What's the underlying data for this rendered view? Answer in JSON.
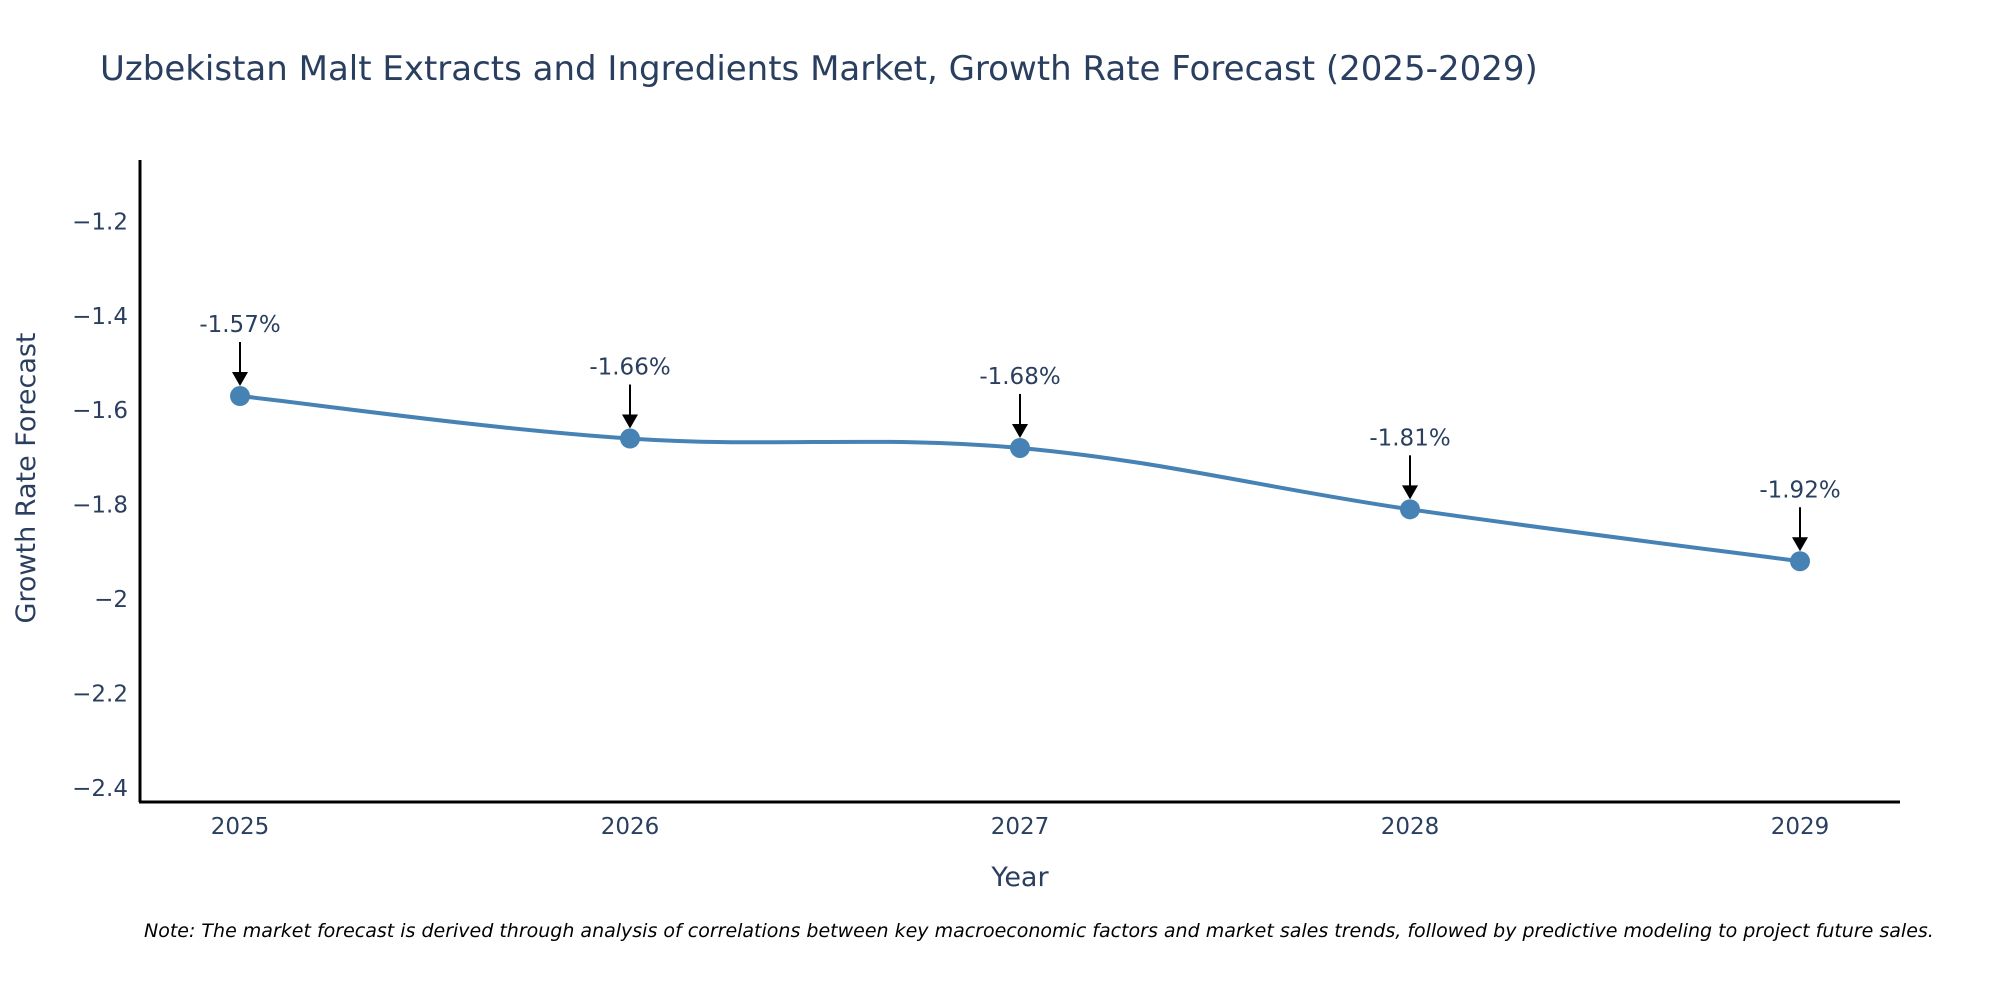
{
  "chart_data": {
    "type": "line",
    "title": "Uzbekistan Malt Extracts and Ingredients Market, Growth Rate Forecast (2025-2029)",
    "xlabel": "Year",
    "ylabel": "Growth Rate Forecast",
    "categories": [
      "2025",
      "2026",
      "2027",
      "2028",
      "2029"
    ],
    "values": [
      -1.57,
      -1.66,
      -1.68,
      -1.81,
      -1.92
    ],
    "data_labels": [
      "-1.57%",
      "-1.66%",
      "-1.68%",
      "-1.81%",
      "-1.92%"
    ],
    "ylim": [
      -2.43,
      -1.07
    ],
    "yticks": [
      -1.2,
      -1.4,
      -1.6,
      -1.8,
      -2,
      -2.2,
      -2.4
    ],
    "ytick_labels": [
      "−1.2",
      "−1.4",
      "−1.6",
      "−1.8",
      "−2",
      "−2.2",
      "−2.4"
    ],
    "line_color": "#4682b4",
    "marker_color": "#4682b4",
    "axis_color": "#000000",
    "grid": false
  },
  "note": "Note: The market forecast is derived through analysis of correlations between key macroeconomic factors and market sales trends, followed by predictive modeling to project future sales."
}
